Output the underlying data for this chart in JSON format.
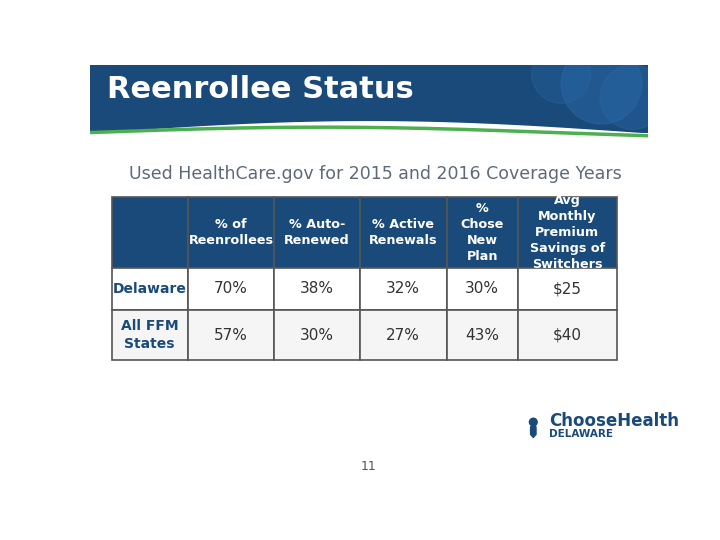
{
  "title": "Reenrollee Status",
  "subtitle": "Used HealthCare.gov for 2015 and 2016 Coverage Years",
  "page_number": "11",
  "header_bg": "#1a4a7a",
  "header_text_color": "#ffffff",
  "table_header_bg": "#1a4a7a",
  "table_header_text_color": "#ffffff",
  "table_row1_bg": "#ffffff",
  "table_row2_bg": "#f5f5f5",
  "table_border_color": "#555555",
  "slide_bg": "#ffffff",
  "col_headers": [
    "% of\nReenrollees",
    "% Auto-\nRenewed",
    "% Active\nRenewals",
    "%\nChose\nNew\nPlan",
    "Avg\nMonthly\nPremium\nSavings of\nSwitchers"
  ],
  "row_labels": [
    "Delaware",
    "All FFM\nStates"
  ],
  "data": [
    [
      "70%",
      "38%",
      "32%",
      "30%",
      "$25"
    ],
    [
      "57%",
      "30%",
      "27%",
      "43%",
      "$40"
    ]
  ],
  "subtitle_color": "#5a6a7a",
  "row_label_color": "#1a4a7a",
  "data_text_color": "#333333",
  "circle_color": "#2a6aaa",
  "wave_color": "#4caf50",
  "logo_color": "#1a4a7a",
  "page_num_color": "#555555"
}
